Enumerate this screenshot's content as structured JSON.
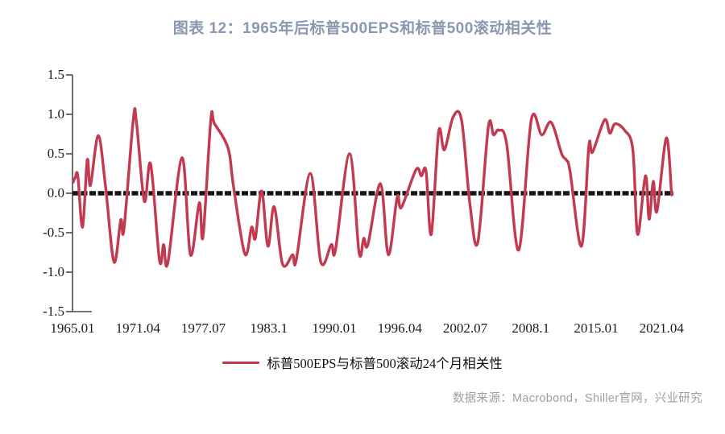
{
  "title": "图表 12：1965年后标普500EPS和标普500滚动相关性",
  "source_note": "数据来源：Macrobond，Shiller官网，兴业研究",
  "colors": {
    "title": "#8a96b2",
    "series_line": "#c23a50",
    "zero_line": "#161616",
    "axis": "#4a4a4a",
    "tick_text": "#1a1a1a",
    "source_text": "#9e9e9e"
  },
  "legend": {
    "label": "标普500EPS与标普500滚动24个月相关性",
    "marker": "red-line-marker"
  },
  "chart_data": {
    "type": "line",
    "title": "图表 12：1965年后标普500EPS和标普500滚动相关性",
    "xlabel": "",
    "ylabel": "",
    "ylim": [
      -1.5,
      1.5
    ],
    "xlim": [
      1965.0,
      2022.6
    ],
    "grid": false,
    "legend_position": "bottom",
    "zero_line": true,
    "y_ticks": [
      1.5,
      1.0,
      0.5,
      0.0,
      -0.5,
      -1.0,
      -1.5
    ],
    "x_ticks": [
      {
        "label": "1965.01",
        "t": 1965.04
      },
      {
        "label": "1971.04",
        "t": 1971.29
      },
      {
        "label": "1977.07",
        "t": 1977.54
      },
      {
        "label": "1983.1",
        "t": 1983.79
      },
      {
        "label": "1990.01",
        "t": 1990.04
      },
      {
        "label": "1996.04",
        "t": 1996.29
      },
      {
        "label": "2002.07",
        "t": 2002.54
      },
      {
        "label": "2008.1",
        "t": 2008.79
      },
      {
        "label": "2015.01",
        "t": 2015.04
      },
      {
        "label": "2021.04",
        "t": 2021.29
      }
    ],
    "series": [
      {
        "name": "标普500EPS与标普500滚动24个月相关性",
        "color": "#c23a50",
        "points": [
          [
            1965.1,
            0.14
          ],
          [
            1965.3,
            0.2
          ],
          [
            1965.55,
            0.22
          ],
          [
            1966.0,
            -0.43
          ],
          [
            1966.45,
            0.42
          ],
          [
            1966.75,
            0.1
          ],
          [
            1967.5,
            0.73
          ],
          [
            1968.2,
            0.08
          ],
          [
            1969.0,
            -0.87
          ],
          [
            1969.65,
            -0.34
          ],
          [
            1969.95,
            -0.46
          ],
          [
            1970.85,
            0.94
          ],
          [
            1971.15,
            0.9
          ],
          [
            1971.9,
            -0.1
          ],
          [
            1972.5,
            0.37
          ],
          [
            1973.35,
            -0.85
          ],
          [
            1973.75,
            -0.65
          ],
          [
            1974.15,
            -0.88
          ],
          [
            1975.5,
            0.45
          ],
          [
            1976.3,
            -0.78
          ],
          [
            1977.15,
            -0.12
          ],
          [
            1977.5,
            -0.55
          ],
          [
            1978.25,
            0.93
          ],
          [
            1978.6,
            0.88
          ],
          [
            1979.9,
            0.57
          ],
          [
            1980.4,
            0.1
          ],
          [
            1981.5,
            -0.77
          ],
          [
            1982.15,
            -0.43
          ],
          [
            1982.5,
            -0.57
          ],
          [
            1983.1,
            0.03
          ],
          [
            1983.7,
            -0.67
          ],
          [
            1984.3,
            -0.17
          ],
          [
            1985.1,
            -0.9
          ],
          [
            1986.05,
            -0.78
          ],
          [
            1986.4,
            -0.85
          ],
          [
            1987.75,
            0.25
          ],
          [
            1988.75,
            -0.87
          ],
          [
            1989.75,
            -0.65
          ],
          [
            1990.15,
            -0.72
          ],
          [
            1991.5,
            0.5
          ],
          [
            1992.4,
            -0.75
          ],
          [
            1992.85,
            -0.57
          ],
          [
            1993.25,
            -0.65
          ],
          [
            1994.45,
            0.12
          ],
          [
            1995.2,
            -0.78
          ],
          [
            1996.05,
            -0.05
          ],
          [
            1996.45,
            -0.18
          ],
          [
            1997.85,
            0.3
          ],
          [
            1998.35,
            0.22
          ],
          [
            1998.8,
            0.28
          ],
          [
            1999.3,
            -0.52
          ],
          [
            2000.0,
            0.78
          ],
          [
            2000.55,
            0.55
          ],
          [
            2001.4,
            0.97
          ],
          [
            2002.2,
            0.92
          ],
          [
            2003.0,
            -0.15
          ],
          [
            2003.75,
            -0.62
          ],
          [
            2004.75,
            0.84
          ],
          [
            2005.25,
            0.74
          ],
          [
            2005.75,
            0.8
          ],
          [
            2006.5,
            0.62
          ],
          [
            2007.65,
            -0.72
          ],
          [
            2008.85,
            0.93
          ],
          [
            2009.85,
            0.74
          ],
          [
            2010.75,
            0.9
          ],
          [
            2011.75,
            0.5
          ],
          [
            2012.2,
            0.42
          ],
          [
            2012.55,
            0.28
          ],
          [
            2013.65,
            -0.67
          ],
          [
            2014.35,
            0.6
          ],
          [
            2014.7,
            0.52
          ],
          [
            2015.85,
            0.93
          ],
          [
            2016.35,
            0.76
          ],
          [
            2016.85,
            0.88
          ],
          [
            2017.75,
            0.8
          ],
          [
            2018.55,
            0.55
          ],
          [
            2019.0,
            -0.52
          ],
          [
            2019.75,
            0.22
          ],
          [
            2020.1,
            -0.33
          ],
          [
            2020.5,
            0.15
          ],
          [
            2020.85,
            -0.23
          ],
          [
            2021.75,
            0.7
          ],
          [
            2022.25,
            -0.02
          ]
        ]
      }
    ]
  }
}
